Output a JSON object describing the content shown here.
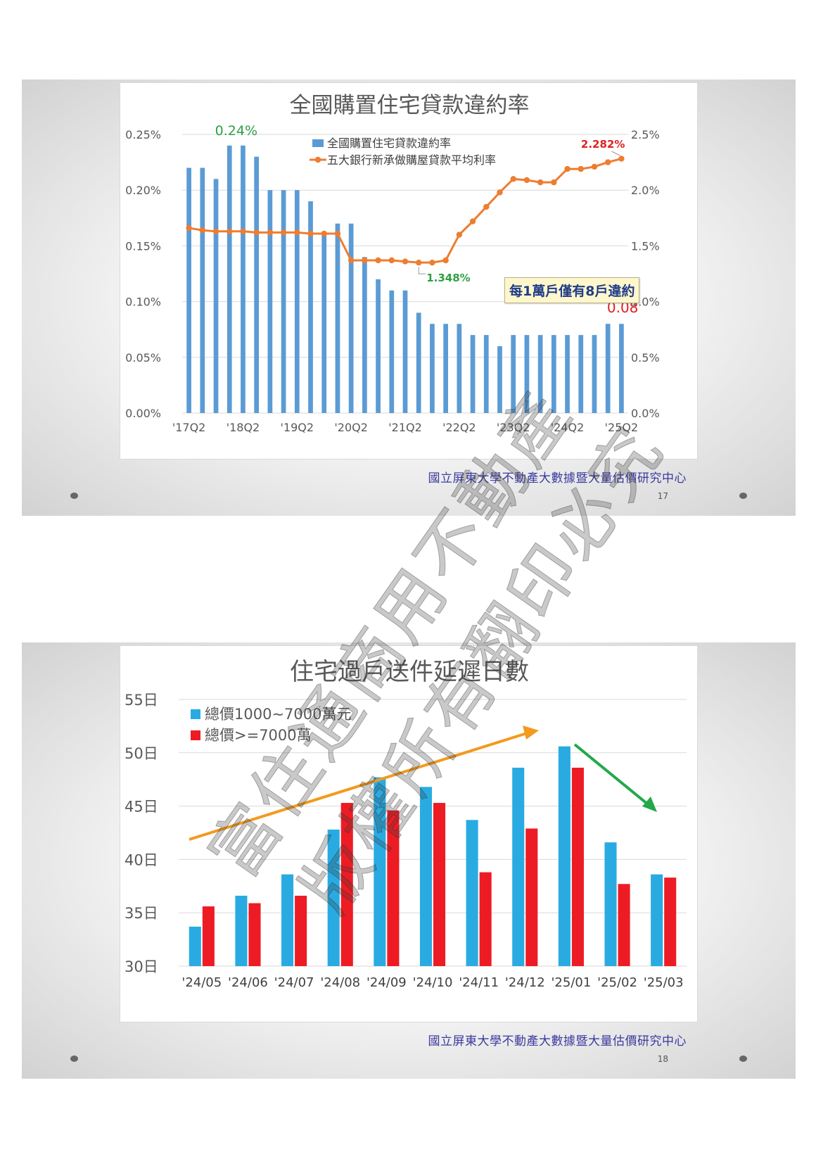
{
  "slide1": {
    "footer": "國立屏東大學不動產大數據暨大量估價研究中心",
    "page_number": "17"
  },
  "slide2": {
    "footer": "國立屏東大學不動產大數據暨大量估價研究中心",
    "page_number": "18"
  },
  "watermark": {
    "line1": "富住通商用不動產",
    "line2": "版權所有翻印必究"
  },
  "chart_data": [
    {
      "type": "bar",
      "title": "全國購置住宅貸款違約率",
      "left_axis_ticks": [
        "0.00%",
        "0.05%",
        "0.10%",
        "0.15%",
        "0.20%",
        "0.25%"
      ],
      "right_axis_ticks": [
        "0.0%",
        "0.5%",
        "1.0%",
        "1.5%",
        "2.0%",
        "2.5%"
      ],
      "ylim_left": [
        0,
        0.25
      ],
      "ylim_right": [
        0,
        2.5
      ],
      "categories": [
        "'17Q2",
        "",
        "",
        "",
        "'18Q2",
        "",
        "",
        "",
        "'19Q2",
        "",
        "",
        "",
        "'20Q2",
        "",
        "",
        "",
        "'21Q2",
        "",
        "",
        "",
        "'22Q2",
        "",
        "",
        "",
        "'23Q2",
        "",
        "",
        "",
        "'24Q2",
        "",
        "",
        "",
        "'25Q2"
      ],
      "series": [
        {
          "name": "全國購置住宅貸款違約率",
          "axis": "left",
          "kind": "bar",
          "color": "#5b9bd5",
          "values": [
            0.22,
            0.22,
            0.21,
            0.24,
            0.24,
            0.23,
            0.2,
            0.2,
            0.2,
            0.19,
            0.16,
            0.17,
            0.17,
            0.14,
            0.12,
            0.11,
            0.11,
            0.09,
            0.08,
            0.08,
            0.08,
            0.07,
            0.07,
            0.06,
            0.07,
            0.07,
            0.07,
            0.07,
            0.07,
            0.07,
            0.07,
            0.08,
            0.08
          ]
        },
        {
          "name": "五大銀行新承做購屋貸款平均利率",
          "axis": "right",
          "kind": "line",
          "color": "#ed7d31",
          "values": [
            1.66,
            1.64,
            1.63,
            1.63,
            1.63,
            1.62,
            1.62,
            1.62,
            1.62,
            1.61,
            1.61,
            1.61,
            1.37,
            1.37,
            1.37,
            1.37,
            1.36,
            1.35,
            1.35,
            1.37,
            1.6,
            1.72,
            1.85,
            1.98,
            2.1,
            2.09,
            2.07,
            2.07,
            2.19,
            2.19,
            2.21,
            2.25,
            2.282
          ]
        }
      ],
      "annotations": {
        "peak_label": "0.24%",
        "latest_rate_label": "2.282%",
        "low_rate_label": "1.348%",
        "latest_default_label": "0.08",
        "callout": "每1萬戶僅有8戶違約"
      },
      "grid": true,
      "legend_position": "top-right"
    },
    {
      "type": "bar",
      "title": "住宅過戶送件延遲日數",
      "y_ticks": [
        "30日",
        "35日",
        "40日",
        "45日",
        "50日",
        "55日"
      ],
      "ylim": [
        30,
        55
      ],
      "categories": [
        "'24/05",
        "'24/06",
        "'24/07",
        "'24/08",
        "'24/09",
        "'24/10",
        "'24/11",
        "'24/12",
        "'25/01",
        "'25/02",
        "'25/03"
      ],
      "series": [
        {
          "name": "總價1000~7000萬元",
          "color": "#29abe2",
          "values": [
            33.7,
            36.6,
            38.6,
            42.8,
            47.7,
            46.8,
            43.7,
            48.6,
            50.6,
            41.6,
            38.6
          ]
        },
        {
          "name": "總價>=7000萬",
          "color": "#ed1c24",
          "values": [
            35.6,
            35.9,
            36.6,
            45.3,
            44.6,
            45.3,
            38.8,
            42.9,
            48.6,
            37.7,
            38.3
          ]
        }
      ],
      "grid": true,
      "legend_position": "top-left"
    }
  ]
}
